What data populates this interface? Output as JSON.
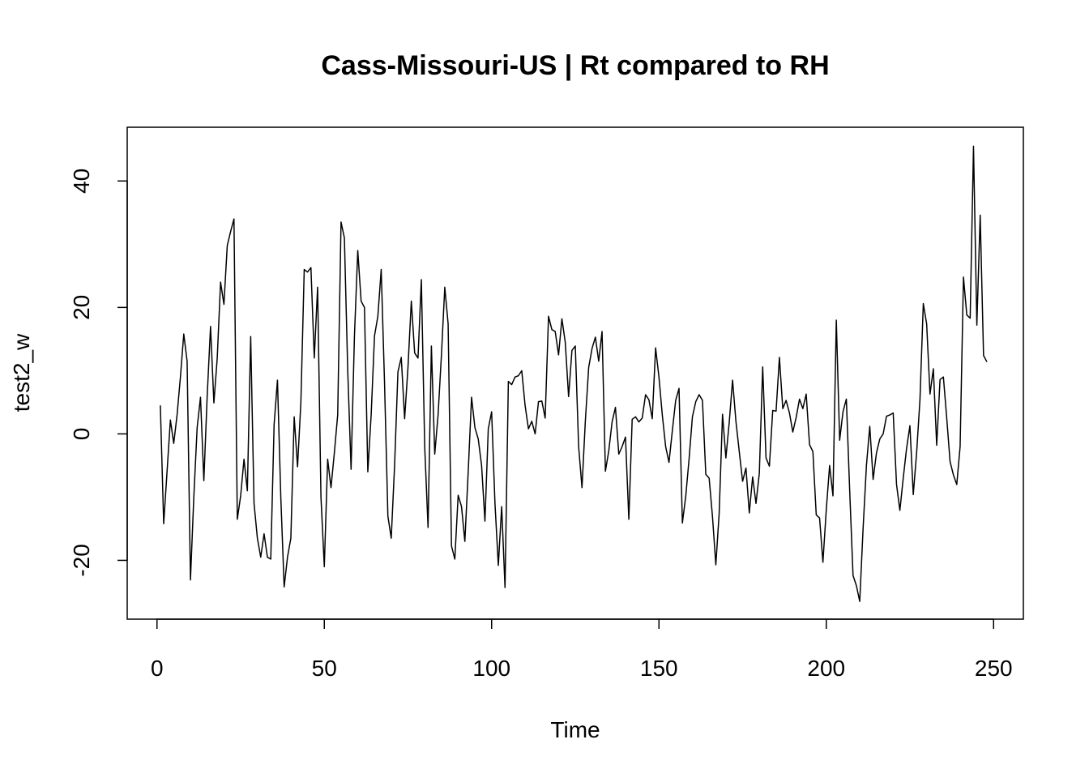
{
  "chart_data": {
    "type": "line",
    "title": "Cass-Missouri-US | Rt compared to RH",
    "xlabel": "Time",
    "ylabel": "test2_w",
    "xlim": [
      -8.9,
      258.9
    ],
    "ylim": [
      -29.3,
      48.5
    ],
    "x_ticks": [
      0,
      50,
      100,
      150,
      200,
      250
    ],
    "y_ticks": [
      -20,
      0,
      20,
      40
    ],
    "x_tick_labels": [
      "0",
      "50",
      "100",
      "150",
      "200",
      "250"
    ],
    "y_tick_labels": [
      "-20",
      "0",
      "20",
      "40"
    ],
    "grid": false,
    "legend": "none",
    "line_color": "#000000",
    "series": [
      {
        "x": [
          1,
          2,
          3,
          4,
          5,
          6,
          7,
          8,
          9,
          10,
          11,
          12,
          13,
          14,
          15,
          16,
          17,
          18,
          19,
          20,
          21,
          22,
          23,
          24,
          25,
          26,
          27,
          28,
          29,
          30,
          31,
          32,
          33,
          34,
          35,
          36,
          37,
          38,
          39,
          40,
          41,
          42,
          43,
          44,
          45,
          46,
          47,
          48,
          49,
          50,
          51,
          52,
          53,
          54,
          55,
          56,
          57,
          58,
          59,
          60,
          61,
          62,
          63,
          64,
          65,
          66,
          67,
          68,
          69,
          70,
          71,
          72,
          73,
          74,
          75,
          76,
          77,
          78,
          79,
          80,
          81,
          82,
          83,
          84,
          85,
          86,
          87,
          88,
          89,
          90,
          91,
          92,
          93,
          94,
          95,
          96,
          97,
          98,
          99,
          100,
          101,
          102,
          103,
          104,
          105,
          106,
          107,
          108,
          109,
          110,
          111,
          112,
          113,
          114,
          115,
          116,
          117,
          118,
          119,
          120,
          121,
          122,
          123,
          124,
          125,
          126,
          127,
          128,
          129,
          130,
          131,
          132,
          133,
          134,
          135,
          136,
          137,
          138,
          139,
          140,
          141,
          142,
          143,
          144,
          145,
          146,
          147,
          148,
          149,
          150,
          151,
          152,
          153,
          154,
          155,
          156,
          157,
          158,
          159,
          160,
          161,
          162,
          163,
          164,
          165,
          166,
          167,
          168,
          169,
          170,
          171,
          172,
          173,
          174,
          175,
          176,
          177,
          178,
          179,
          180,
          181,
          182,
          183,
          184,
          185,
          186,
          187,
          188,
          189,
          190,
          191,
          192,
          193,
          194,
          195,
          196,
          197,
          198,
          199,
          200,
          201,
          202,
          203,
          204,
          205,
          206,
          207,
          208,
          209,
          210,
          211,
          212,
          213,
          214,
          215,
          216,
          217,
          218,
          219,
          220,
          221,
          222,
          223,
          224,
          225,
          226,
          227,
          228,
          229,
          230,
          231,
          232,
          233,
          234,
          235,
          236,
          237,
          238,
          239,
          240,
          241,
          242,
          243,
          244,
          245,
          246,
          247,
          248
        ],
        "values": [
          4.5,
          -14.2,
          -6.0,
          2.2,
          -1.5,
          3.0,
          9.0,
          15.8,
          11.5,
          -23.1,
          -10.0,
          1.0,
          5.8,
          -7.4,
          6.0,
          17.0,
          4.9,
          12.0,
          24.0,
          20.5,
          29.8,
          32.0,
          34.0,
          -13.5,
          -9.8,
          -4.0,
          -9.0,
          15.4,
          -11.0,
          -16.5,
          -19.5,
          -15.8,
          -19.5,
          -19.8,
          1.5,
          8.5,
          -10.0,
          -24.2,
          -19.5,
          -16.5,
          2.7,
          -5.2,
          5.0,
          26.0,
          25.6,
          26.3,
          12.0,
          23.2,
          -10.0,
          -21.0,
          -4.0,
          -8.5,
          -3.0,
          3.0,
          33.5,
          31.0,
          10.0,
          -5.6,
          15.4,
          29.0,
          21.0,
          20.0,
          -6.0,
          3.0,
          15.5,
          18.6,
          26.0,
          8.0,
          -13.0,
          -16.5,
          -5.0,
          9.8,
          12.1,
          2.4,
          10.5,
          21.0,
          12.8,
          12.0,
          24.4,
          -2.0,
          -14.8,
          13.9,
          -3.2,
          3.0,
          12.5,
          23.2,
          17.4,
          -17.7,
          -19.8,
          -9.7,
          -11.5,
          -17.0,
          -6.0,
          5.8,
          1.0,
          -0.8,
          -5.0,
          -13.8,
          0.8,
          3.5,
          -11.0,
          -20.8,
          -11.5,
          -24.3,
          8.3,
          7.8,
          9.0,
          9.2,
          10.0,
          4.5,
          0.8,
          2.0,
          0.0,
          5.1,
          5.2,
          2.5,
          18.6,
          16.5,
          16.2,
          12.5,
          18.2,
          14.5,
          5.9,
          13.2,
          13.9,
          -2.0,
          -8.5,
          2.0,
          10.5,
          13.5,
          15.3,
          11.5,
          16.2,
          -5.9,
          -2.7,
          1.9,
          4.2,
          -3.2,
          -2.0,
          -0.5,
          -13.5,
          2.3,
          2.7,
          1.9,
          2.5,
          6.2,
          5.4,
          2.4,
          13.6,
          9.0,
          3.0,
          -2.0,
          -4.5,
          0.5,
          5.3,
          7.2,
          -14.1,
          -9.9,
          -4.0,
          2.7,
          5.1,
          6.2,
          5.3,
          -6.4,
          -7.0,
          -13.1,
          -20.7,
          -12.5,
          3.1,
          -3.8,
          1.8,
          8.5,
          2.0,
          -2.8,
          -7.5,
          -5.4,
          -12.5,
          -6.8,
          -11.0,
          -6.2,
          10.6,
          -3.8,
          -5.1,
          3.7,
          3.6,
          12.1,
          4.0,
          5.3,
          3.3,
          0.3,
          2.6,
          5.5,
          4.0,
          6.3,
          -1.7,
          -2.8,
          -12.8,
          -13.3,
          -20.3,
          -12.0,
          -5.0,
          -9.8,
          18.0,
          -1.0,
          3.5,
          5.5,
          -9.0,
          -22.4,
          -24.0,
          -26.5,
          -15.0,
          -5.0,
          1.2,
          -7.2,
          -3.0,
          -0.8,
          0.0,
          2.8,
          3.0,
          3.3,
          -8.0,
          -12.1,
          -7.0,
          -2.3,
          1.3,
          -9.6,
          -3.0,
          5.4,
          20.6,
          17.4,
          6.3,
          10.3,
          -1.8,
          8.6,
          9.0,
          2.5,
          -4.4,
          -6.5,
          -8.0,
          -2.0,
          24.8,
          18.8,
          18.3,
          45.5,
          17.2,
          34.6,
          12.4,
          11.4
        ]
      }
    ]
  }
}
